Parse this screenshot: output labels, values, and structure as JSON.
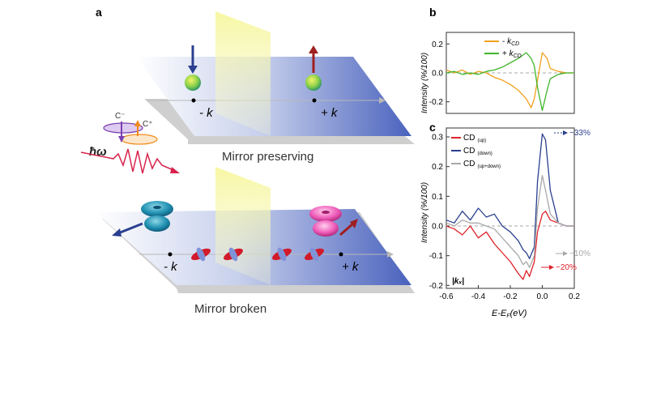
{
  "panel_a": {
    "label": "a",
    "top_caption": "Mirror preserving",
    "bottom_caption": "Mirror broken",
    "top_minus_k": "- k",
    "top_plus_k": "+ k",
    "bottom_minus_k": "- k",
    "bottom_plus_k": "+ k",
    "c_minus": "C⁻",
    "c_plus": "C⁺",
    "hbar_omega": "ħω",
    "colors": {
      "plane": "#5b72c4",
      "mirror": "#f2f27a",
      "spin_down": "#2a3f8f",
      "spin_up": "#a01f1f",
      "light_wave": "#d8234c",
      "c_minus": "#7b3fb0",
      "c_plus": "#f08c1c"
    }
  },
  "panel_b": {
    "label": "b",
    "chart_data": {
      "type": "line",
      "ylabel": "Intensity (%/100)",
      "xlim": [
        -0.6,
        0.2
      ],
      "ylim": [
        -0.28,
        0.28
      ],
      "yticks": [
        "0.2",
        "0.0",
        "-0.2"
      ],
      "ytick_values": [
        0.2,
        0.0,
        -0.2
      ],
      "legend_placement": "top-right",
      "legend": [
        {
          "sign": "- ",
          "k": "k",
          "sub": "CD"
        },
        {
          "sign": "+ ",
          "k": "k",
          "sub": "CD"
        }
      ],
      "series": [
        {
          "color": "#f0a01c",
          "x": [
            -0.6,
            -0.55,
            -0.5,
            -0.45,
            -0.4,
            -0.35,
            -0.3,
            -0.25,
            -0.2,
            -0.15,
            -0.1,
            -0.07,
            -0.05,
            -0.03,
            0.0,
            0.03,
            0.05,
            0.1,
            0.15,
            0.2
          ],
          "y": [
            0.02,
            0.0,
            0.02,
            -0.01,
            0.01,
            0.0,
            -0.03,
            -0.05,
            -0.08,
            -0.12,
            -0.18,
            -0.24,
            -0.18,
            -0.05,
            0.14,
            0.1,
            0.03,
            0.01,
            0.0,
            0.0
          ]
        },
        {
          "color": "#3fb52a",
          "x": [
            -0.6,
            -0.55,
            -0.5,
            -0.45,
            -0.4,
            -0.35,
            -0.3,
            -0.25,
            -0.2,
            -0.15,
            -0.1,
            -0.07,
            -0.05,
            -0.03,
            0.0,
            0.03,
            0.05,
            0.1,
            0.15,
            0.2
          ],
          "y": [
            0.0,
            0.01,
            -0.01,
            0.0,
            -0.01,
            0.01,
            0.02,
            0.04,
            0.07,
            0.1,
            0.14,
            0.1,
            0.05,
            -0.1,
            -0.26,
            -0.12,
            -0.04,
            -0.01,
            0.0,
            0.0
          ]
        }
      ]
    }
  },
  "panel_c": {
    "label": "c",
    "chart_data": {
      "type": "line",
      "ylabel": "Intensity (%/100)",
      "xlabel_main": "E-E",
      "xlabel_sub": "F",
      "xlabel_unit": "(eV)",
      "xlim": [
        -0.6,
        0.2
      ],
      "ylim": [
        -0.21,
        0.33
      ],
      "xticks": [
        "-0.6",
        "-0.4",
        "-0.2",
        "0.0",
        "0.2"
      ],
      "xtick_values": [
        -0.6,
        -0.4,
        -0.2,
        0.0,
        0.2
      ],
      "yticks": [
        "0.3",
        "0.2",
        "0.1",
        "0.0",
        "-0.1",
        "-0.2"
      ],
      "ytick_values": [
        0.3,
        0.2,
        0.1,
        0.0,
        -0.1,
        -0.2
      ],
      "legend_placement": "top-left",
      "k_label": "|kₓ|",
      "annotations": [
        {
          "text": "~33%",
          "color": "#2a3f8f"
        },
        {
          "text": "~10%",
          "color": "#a8a8a8"
        },
        {
          "text": "~20%",
          "color": "#e0222a"
        }
      ],
      "series": [
        {
          "name": "CD",
          "sub": "(up)",
          "color": "#e0222a",
          "x": [
            -0.6,
            -0.55,
            -0.5,
            -0.45,
            -0.4,
            -0.35,
            -0.3,
            -0.25,
            -0.2,
            -0.15,
            -0.12,
            -0.1,
            -0.08,
            -0.05,
            -0.03,
            0.0,
            0.02,
            0.05,
            0.1,
            0.15,
            0.2
          ],
          "y": [
            0.0,
            -0.01,
            -0.03,
            0.0,
            -0.04,
            -0.02,
            -0.06,
            -0.09,
            -0.12,
            -0.16,
            -0.18,
            -0.15,
            -0.17,
            -0.12,
            -0.02,
            0.04,
            0.05,
            0.02,
            0.01,
            0.0,
            0.0
          ]
        },
        {
          "name": "CD",
          "sub": "(down)",
          "color": "#2a3f8f",
          "x": [
            -0.6,
            -0.55,
            -0.5,
            -0.45,
            -0.4,
            -0.35,
            -0.3,
            -0.25,
            -0.2,
            -0.15,
            -0.12,
            -0.1,
            -0.08,
            -0.05,
            -0.03,
            0.0,
            0.02,
            0.05,
            0.1,
            0.15,
            0.2
          ],
          "y": [
            0.02,
            0.01,
            0.05,
            0.02,
            0.06,
            0.03,
            0.04,
            0.0,
            -0.02,
            -0.05,
            -0.08,
            -0.09,
            -0.11,
            -0.07,
            0.15,
            0.31,
            0.29,
            0.12,
            0.01,
            0.0,
            0.0
          ]
        },
        {
          "name": "CD",
          "sub": "(up+down)",
          "color": "#a8a8a8",
          "x": [
            -0.6,
            -0.55,
            -0.5,
            -0.45,
            -0.4,
            -0.35,
            -0.3,
            -0.25,
            -0.2,
            -0.15,
            -0.12,
            -0.1,
            -0.08,
            -0.05,
            -0.03,
            0.0,
            0.02,
            0.05,
            0.1,
            0.15,
            0.2
          ],
          "y": [
            0.01,
            0.0,
            0.02,
            0.01,
            0.01,
            0.0,
            -0.01,
            -0.04,
            -0.07,
            -0.1,
            -0.13,
            -0.12,
            -0.14,
            -0.1,
            0.06,
            0.17,
            0.12,
            0.04,
            0.01,
            0.0,
            0.0
          ]
        }
      ]
    }
  }
}
